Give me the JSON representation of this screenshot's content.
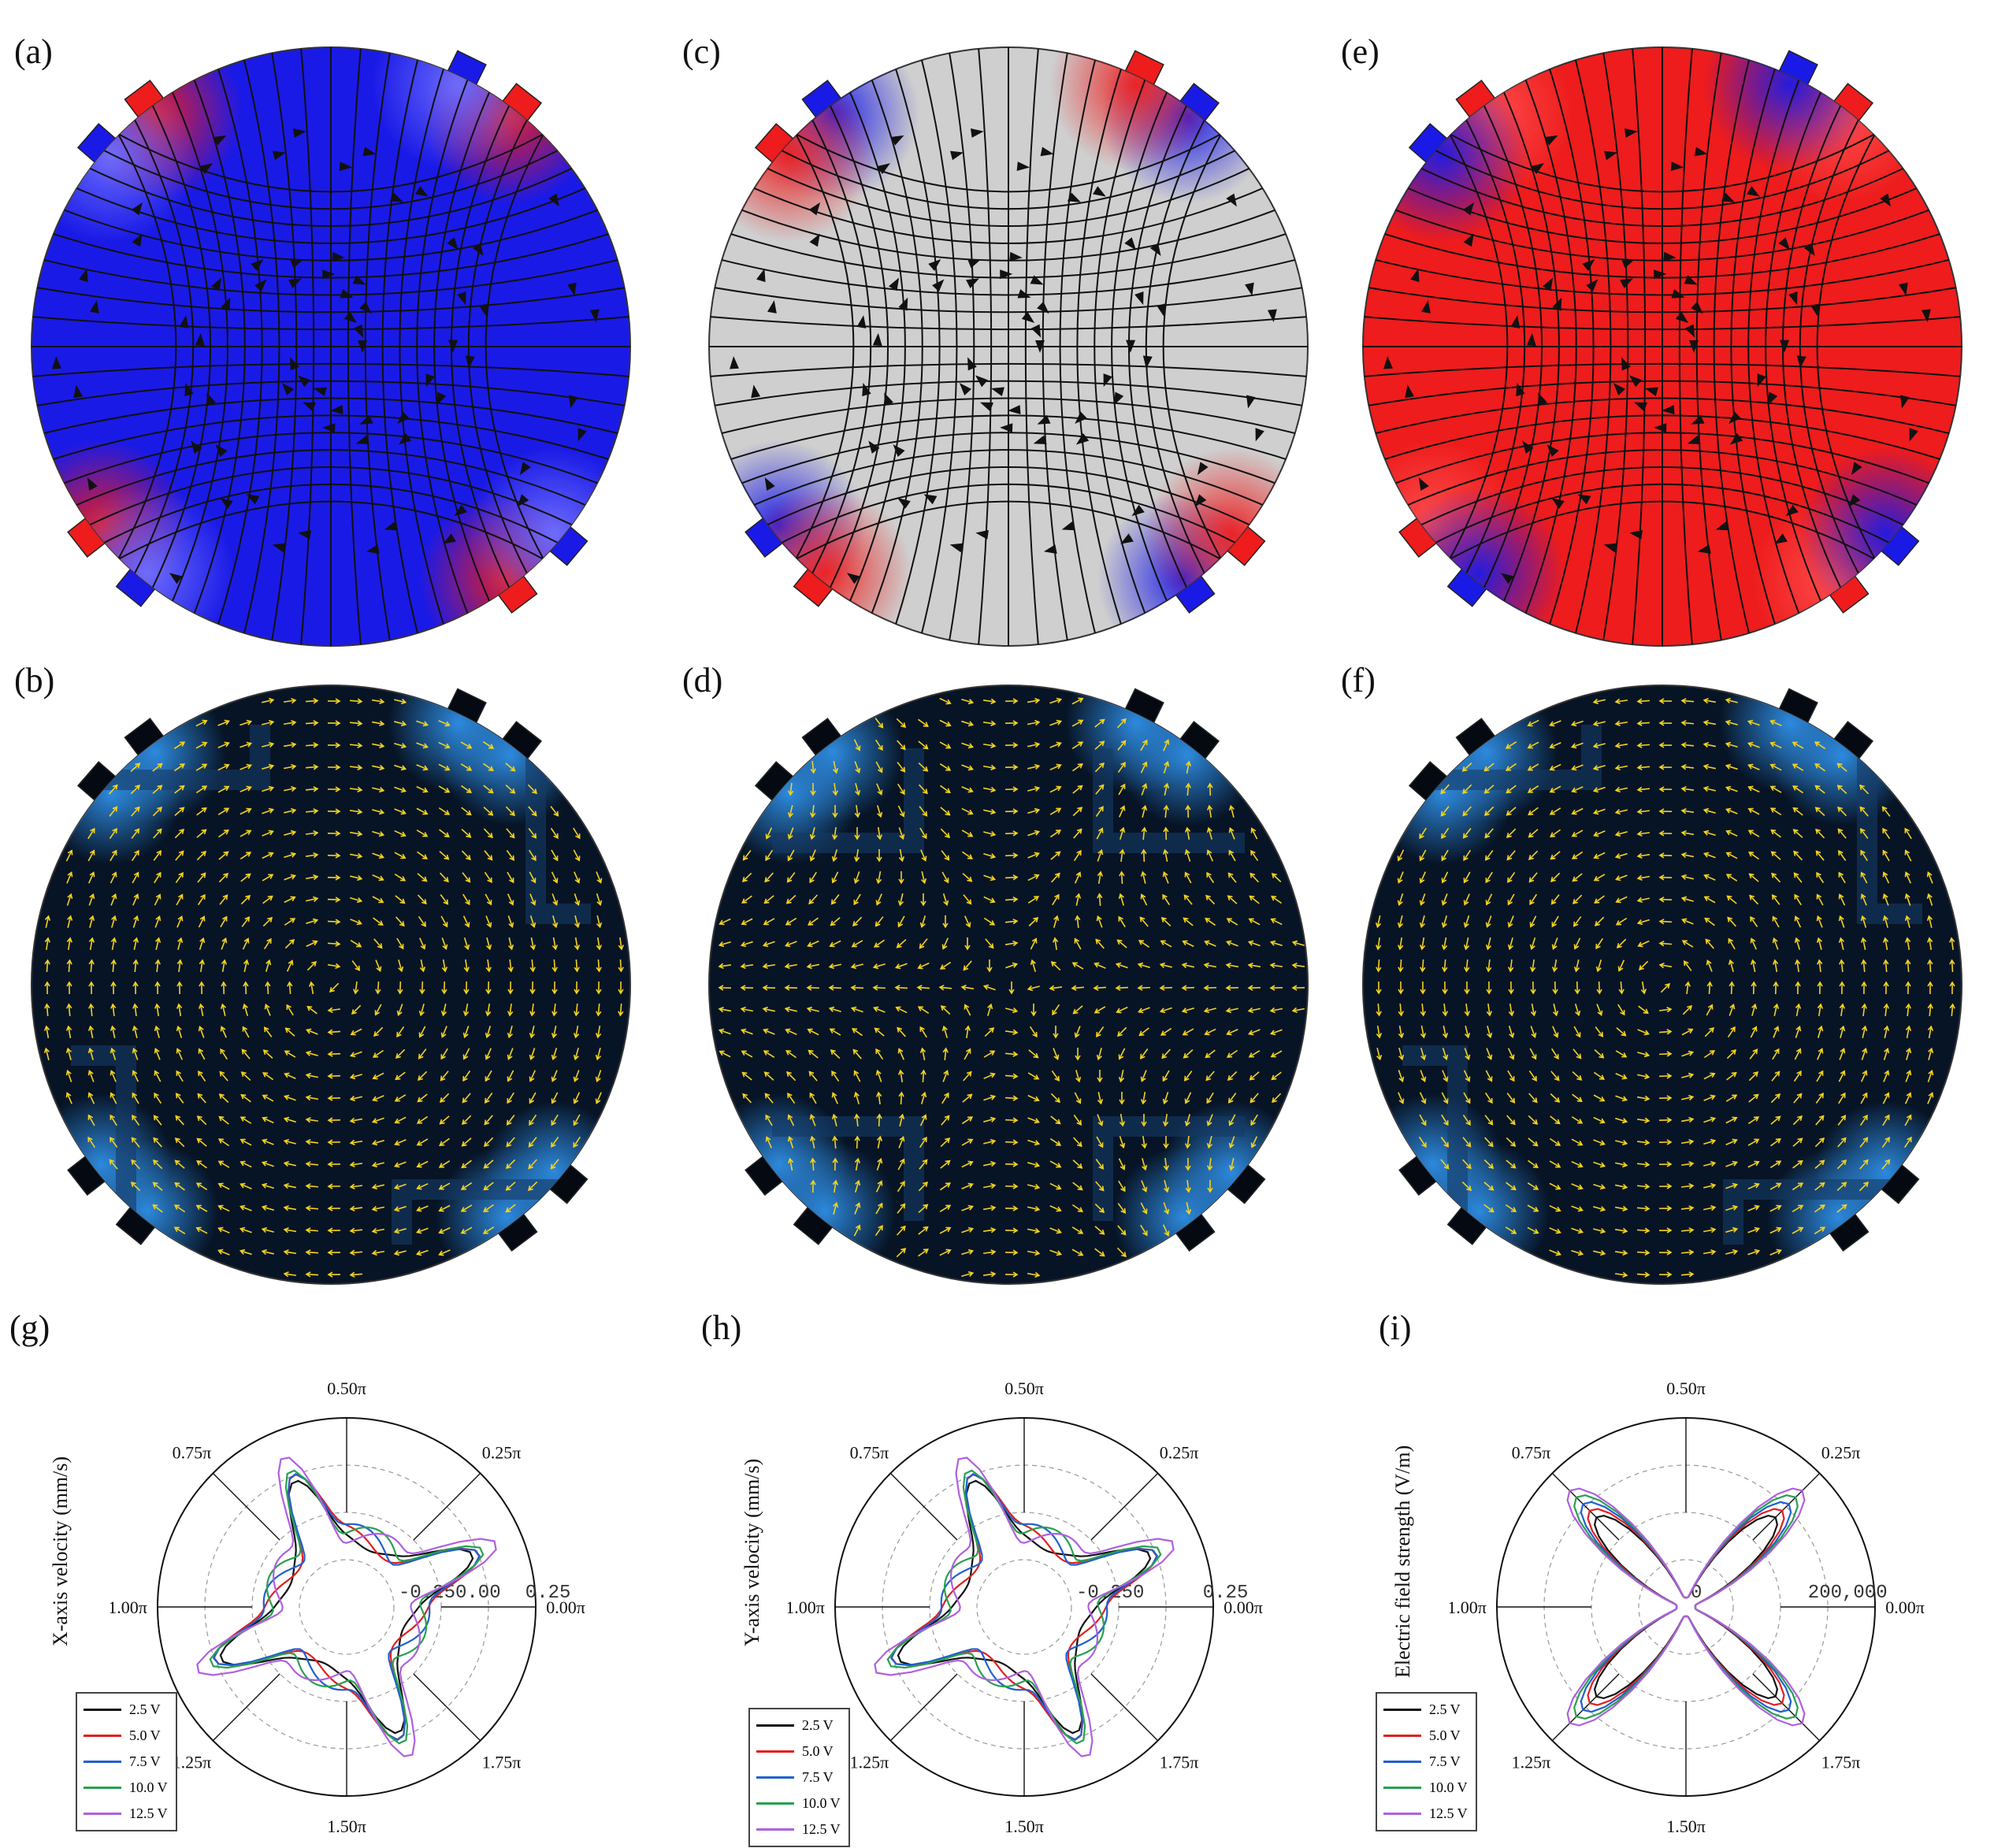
{
  "panels": {
    "a": "(a)",
    "b": "(b)",
    "c": "(c)",
    "d": "(d)",
    "e": "(e)",
    "f": "(f)",
    "g": "(g)",
    "h": "(h)",
    "i": "(i)"
  },
  "colors": {
    "blue": "#1a1ae6",
    "red": "#ee1c1c",
    "grey": "#cfcfcf",
    "dark": "#071426",
    "glow": "#2f8fe6",
    "arrow": "#f2d21e"
  },
  "legend": {
    "entries": [
      {
        "label": "2.5 V",
        "color": "#111111"
      },
      {
        "label": "5.0 V",
        "color": "#e02020"
      },
      {
        "label": "7.5 V",
        "color": "#2060d0"
      },
      {
        "label": "10.0 V",
        "color": "#2aa050"
      },
      {
        "label": "12.5 V",
        "color": "#b060e0"
      }
    ]
  },
  "chart_data": [
    {
      "type": "line",
      "panel": "(g)",
      "ylabel": "X-axis velocity (mm/s)",
      "angle_ticks": [
        "0.00π",
        "0.25π",
        "0.50π",
        "0.75π",
        "1.00π",
        "1.25π",
        "1.50π",
        "1.75π"
      ],
      "radial_ticks": [
        "-0.25",
        "0.00",
        "0.25"
      ]
    },
    {
      "type": "line",
      "panel": "(h)",
      "ylabel": "Y-axis velocity (mm/s)",
      "angle_ticks": [
        "0.00π",
        "0.25π",
        "0.50π",
        "0.75π",
        "1.00π",
        "1.25π",
        "1.50π",
        "1.75π"
      ],
      "radial_ticks": [
        "-0.25",
        "0",
        "0.25"
      ]
    },
    {
      "type": "line",
      "panel": "(i)",
      "ylabel": "Electric field strength (V/m)",
      "angle_ticks": [
        "0.00π",
        "0.25π",
        "0.50π",
        "0.75π",
        "1.00π",
        "1.25π",
        "1.50π",
        "1.75π"
      ],
      "radial_ticks": [
        "0",
        "200,000"
      ]
    }
  ]
}
